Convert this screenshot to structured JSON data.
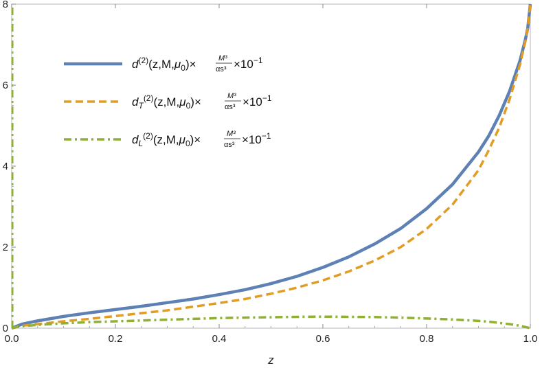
{
  "chart_data": {
    "type": "line",
    "xlabel": "z",
    "ylabel": "",
    "xlim": [
      0,
      1
    ],
    "ylim": [
      0,
      8
    ],
    "x_ticks": [
      "0.0",
      "0.2",
      "0.4",
      "0.6",
      "0.8",
      "1.0"
    ],
    "y_ticks": [
      "0",
      "2",
      "4",
      "6",
      "8"
    ],
    "legend_position": "top-left",
    "series": [
      {
        "name": "d^(2)(z,M,μ0) × M³/αs³ × 10^-1",
        "color": "#5E81B5",
        "style": "solid",
        "x": [
          0,
          0.02,
          0.05,
          0.1,
          0.15,
          0.2,
          0.25,
          0.3,
          0.35,
          0.4,
          0.45,
          0.5,
          0.55,
          0.6,
          0.65,
          0.7,
          0.75,
          0.8,
          0.85,
          0.9,
          0.92,
          0.94,
          0.96,
          0.98,
          0.99,
          0.995,
          1.0
        ],
        "y": [
          0.0,
          0.1,
          0.18,
          0.29,
          0.38,
          0.46,
          0.54,
          0.63,
          0.72,
          0.83,
          0.95,
          1.1,
          1.28,
          1.5,
          1.76,
          2.08,
          2.46,
          2.95,
          3.55,
          4.35,
          4.75,
          5.25,
          5.85,
          6.6,
          7.1,
          7.4,
          8.0
        ]
      },
      {
        "name": "d_T^(2)(z,M,μ0) × M³/αs³ × 10^-1",
        "color": "#E19C24",
        "style": "dashed",
        "x": [
          0,
          0.02,
          0.05,
          0.1,
          0.15,
          0.2,
          0.25,
          0.3,
          0.35,
          0.4,
          0.45,
          0.5,
          0.55,
          0.6,
          0.65,
          0.7,
          0.75,
          0.8,
          0.85,
          0.9,
          0.92,
          0.94,
          0.96,
          0.98,
          0.99,
          0.995,
          1.0
        ],
        "y": [
          0.0,
          0.06,
          0.1,
          0.17,
          0.23,
          0.3,
          0.37,
          0.44,
          0.53,
          0.62,
          0.72,
          0.85,
          1.0,
          1.18,
          1.4,
          1.67,
          2.0,
          2.45,
          3.05,
          3.9,
          4.4,
          4.95,
          5.65,
          6.5,
          7.05,
          7.4,
          8.0
        ]
      },
      {
        "name": "d_L^(2)(z,M,μ0) × M³/αs³ × 10^-1",
        "color": "#8FB032",
        "style": "dashdot",
        "x": [
          0,
          0.02,
          0.05,
          0.1,
          0.15,
          0.2,
          0.25,
          0.3,
          0.35,
          0.4,
          0.45,
          0.5,
          0.55,
          0.6,
          0.65,
          0.7,
          0.75,
          0.8,
          0.85,
          0.9,
          0.92,
          0.94,
          0.96,
          0.98,
          0.99,
          1.0
        ],
        "y": [
          0.0,
          0.05,
          0.08,
          0.12,
          0.15,
          0.17,
          0.19,
          0.21,
          0.23,
          0.25,
          0.26,
          0.27,
          0.28,
          0.285,
          0.28,
          0.275,
          0.26,
          0.24,
          0.215,
          0.18,
          0.16,
          0.13,
          0.1,
          0.06,
          0.03,
          0.0
        ]
      }
    ]
  },
  "legend": [
    {
      "main": "d",
      "sub": "",
      "sup": "(2)",
      "args": "(z,M,",
      "mu": "μ",
      "mu_sub": "0",
      "close": ")×",
      "frac_num": "M³",
      "frac_den": "αs³",
      "tail": "×10",
      "tail_sup": "−1"
    },
    {
      "main": "d",
      "sub": "T",
      "sup": "(2)",
      "args": "(z,M,",
      "mu": "μ",
      "mu_sub": "0",
      "close": ")×",
      "frac_num": "M³",
      "frac_den": "αs³",
      "tail": "×10",
      "tail_sup": "−1"
    },
    {
      "main": "d",
      "sub": "L",
      "sup": "(2)",
      "args": "(z,M,",
      "mu": "μ",
      "mu_sub": "0",
      "close": ")×",
      "frac_num": "M³",
      "frac_den": "αs³",
      "tail": "×10",
      "tail_sup": "−1"
    }
  ]
}
